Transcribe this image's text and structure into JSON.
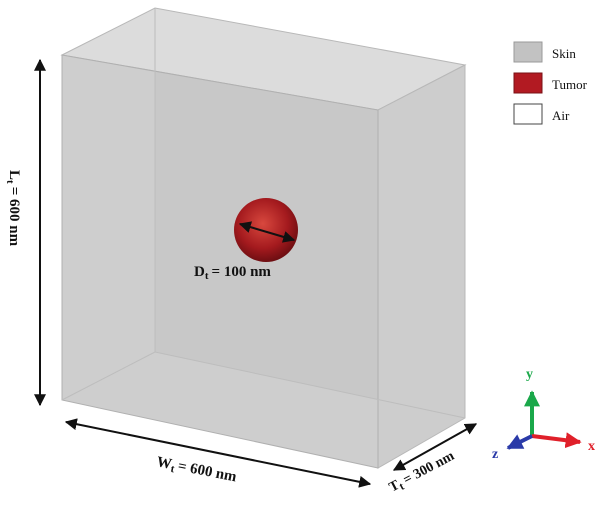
{
  "legend": {
    "items": [
      {
        "label": "Skin",
        "color": "#c2c2c2"
      },
      {
        "label": "Tumor",
        "color": "#b21a22"
      },
      {
        "label": "Air",
        "color": "#ffffff"
      }
    ]
  },
  "dimensions": {
    "height": {
      "symbol": "L",
      "sub": "t",
      "value": "= 600 nm"
    },
    "width": {
      "symbol": "W",
      "sub": "t",
      "value": "= 600 nm"
    },
    "thickness": {
      "symbol": "T",
      "sub": "t",
      "value": "= 300 nm"
    },
    "tumor_diameter": {
      "symbol": "D",
      "sub": "t",
      "value": "= 100 nm"
    }
  },
  "axes": {
    "x": {
      "label": "x",
      "color": "#e0202a"
    },
    "y": {
      "label": "y",
      "color": "#1aa84a"
    },
    "z": {
      "label": "z",
      "color": "#2a3aa8"
    }
  },
  "colors": {
    "skin_front": "#c9c9c9",
    "skin_top": "#dedede",
    "skin_side": "#d2d2d2",
    "tumor": "#b21a22"
  }
}
